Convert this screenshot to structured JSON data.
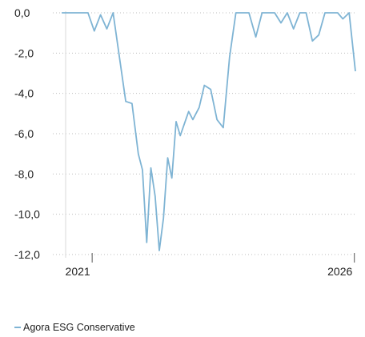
{
  "chart_data": {
    "type": "line",
    "title": "",
    "xlabel": "",
    "ylabel": "",
    "ylim": [
      -12.5,
      0.3
    ],
    "y_ticks": [
      0,
      -2,
      -4,
      -6,
      -8,
      -10,
      -12
    ],
    "y_tick_labels": [
      "0,0",
      "-2,0",
      "-4,0",
      "-6,0",
      "-8,0",
      "-10,0",
      "-12,0"
    ],
    "x_ticks": [
      2021,
      2026
    ],
    "x_tick_labels": [
      "2021",
      "2026"
    ],
    "xlim": [
      2020.25,
      2026.05
    ],
    "grid": "horizontal-dotted",
    "legend_position": "bottom-left",
    "series": [
      {
        "name": "Agora ESG Conservative",
        "color": "#7fb4d4",
        "x": [
          2020.42,
          2020.92,
          2021.04,
          2021.16,
          2021.28,
          2021.4,
          2021.52,
          2021.64,
          2021.76,
          2021.88,
          2021.96,
          2022.04,
          2022.12,
          2022.2,
          2022.28,
          2022.36,
          2022.44,
          2022.52,
          2022.6,
          2022.68,
          2022.76,
          2022.84,
          2022.92,
          2023.04,
          2023.14,
          2023.26,
          2023.38,
          2023.5,
          2023.62,
          2023.74,
          2023.88,
          2023.99,
          2024.12,
          2024.24,
          2024.36,
          2024.48,
          2024.6,
          2024.72,
          2024.84,
          2024.96,
          2025.08,
          2025.2,
          2025.32,
          2025.44,
          2025.56,
          2025.68,
          2025.78,
          2025.9,
          2026.02
        ],
        "values": [
          0.0,
          0.0,
          -0.9,
          -0.1,
          -0.8,
          0.0,
          -2.2,
          -4.4,
          -4.5,
          -7.0,
          -7.8,
          -11.4,
          -7.7,
          -9.1,
          -11.8,
          -10.2,
          -7.2,
          -8.2,
          -5.4,
          -6.1,
          -5.5,
          -4.9,
          -5.3,
          -4.7,
          -3.6,
          -3.8,
          -5.3,
          -5.7,
          -2.2,
          0.0,
          0.0,
          0.0,
          -1.2,
          0.0,
          0.0,
          0.0,
          -0.5,
          0.0,
          -0.8,
          0.0,
          0.0,
          -1.4,
          -1.1,
          0.0,
          0.0,
          0.0,
          -0.3,
          0.0,
          -2.9
        ]
      }
    ]
  }
}
